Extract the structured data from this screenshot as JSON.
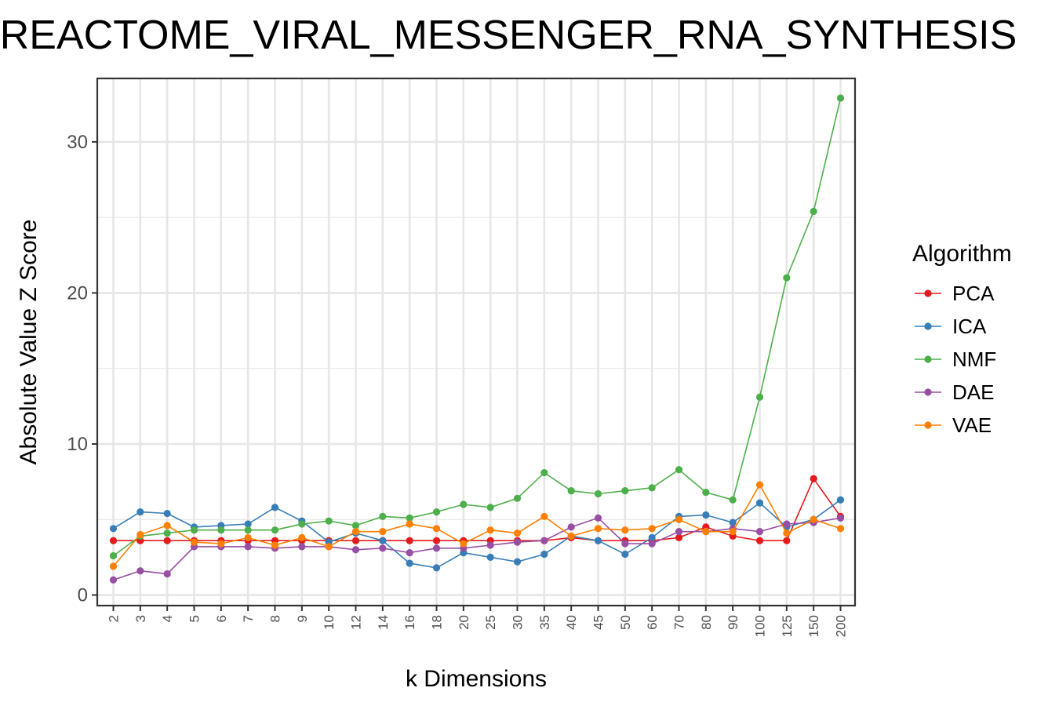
{
  "chart_data": {
    "type": "line",
    "title": "REACTOME_VIRAL_MESSENGER_RNA_SYNTHESIS",
    "xlabel": "k Dimensions",
    "ylabel": "Absolute Value Z Score",
    "categories": [
      "2",
      "3",
      "4",
      "5",
      "6",
      "7",
      "8",
      "9",
      "10",
      "12",
      "14",
      "16",
      "18",
      "20",
      "25",
      "30",
      "35",
      "40",
      "45",
      "50",
      "60",
      "70",
      "80",
      "90",
      "100",
      "125",
      "150",
      "200"
    ],
    "ylim": [
      -0.7,
      34.2
    ],
    "yticks": [
      "0",
      "10",
      "20",
      "30"
    ],
    "grid": true,
    "legend": {
      "title": "Algorithm",
      "placement": "right"
    },
    "series": [
      {
        "name": "PCA",
        "color": "#E41A1C",
        "values": [
          3.6,
          3.6,
          3.6,
          3.6,
          3.6,
          3.6,
          3.6,
          3.6,
          3.6,
          3.6,
          3.6,
          3.6,
          3.6,
          3.6,
          3.6,
          3.6,
          3.6,
          3.8,
          3.6,
          3.6,
          3.6,
          3.8,
          4.5,
          3.9,
          3.6,
          3.6,
          7.7,
          5.2
        ]
      },
      {
        "name": "ICA",
        "color": "#377EB8",
        "values": [
          4.4,
          5.5,
          5.4,
          4.5,
          4.6,
          4.7,
          5.8,
          4.9,
          3.5,
          4.1,
          3.6,
          2.1,
          1.8,
          2.8,
          2.5,
          2.2,
          2.7,
          3.9,
          3.6,
          2.7,
          3.8,
          5.2,
          5.3,
          4.8,
          6.1,
          4.5,
          5.0,
          6.3
        ]
      },
      {
        "name": "NMF",
        "color": "#4DAF4A",
        "values": [
          2.6,
          3.9,
          4.1,
          4.3,
          4.3,
          4.3,
          4.3,
          4.7,
          4.9,
          4.6,
          5.2,
          5.1,
          5.5,
          6.0,
          5.8,
          6.4,
          8.1,
          6.9,
          6.7,
          6.9,
          7.1,
          8.3,
          6.8,
          6.3,
          13.1,
          21.0,
          25.4,
          32.9
        ]
      },
      {
        "name": "DAE",
        "color": "#984EA3",
        "values": [
          1.0,
          1.6,
          1.4,
          3.2,
          3.2,
          3.2,
          3.1,
          3.2,
          3.2,
          3.0,
          3.1,
          2.8,
          3.1,
          3.1,
          3.3,
          3.5,
          3.6,
          4.5,
          5.1,
          3.4,
          3.4,
          4.2,
          4.2,
          4.4,
          4.2,
          4.7,
          4.8,
          5.1
        ]
      },
      {
        "name": "VAE",
        "color": "#FF7F00",
        "values": [
          1.9,
          4.0,
          4.6,
          3.5,
          3.4,
          3.8,
          3.3,
          3.8,
          3.2,
          4.2,
          4.2,
          4.7,
          4.4,
          3.4,
          4.3,
          4.1,
          5.2,
          3.9,
          4.4,
          4.3,
          4.4,
          5.0,
          4.2,
          4.2,
          7.3,
          4.1,
          5.0,
          4.4
        ]
      }
    ]
  }
}
